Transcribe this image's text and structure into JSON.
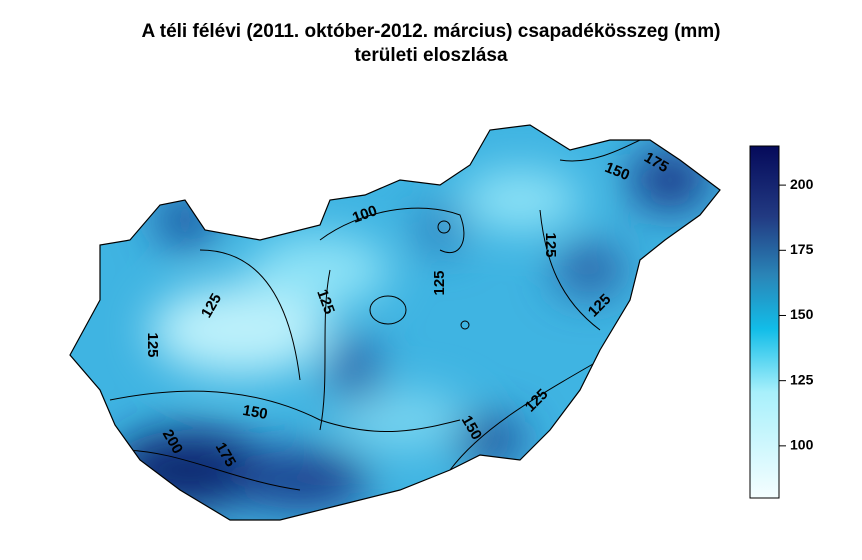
{
  "title": {
    "line1": "A téli félévi (2011. október-2012. március) csapadékösszeg (mm)",
    "line2": "területi eloszlása"
  },
  "map": {
    "region": "Hungary",
    "variable": "precipitation (mm)",
    "contour_labels": [
      "100",
      "150",
      "175",
      "125",
      "125",
      "125",
      "125",
      "125",
      "125",
      "150",
      "175",
      "200",
      "150",
      "125"
    ]
  },
  "colorbar": {
    "range": [
      80,
      215
    ],
    "ticks": [
      "100",
      "125",
      "150",
      "175",
      "200"
    ],
    "colors": {
      "low": "#f5feff",
      "mid_low": "#a8f0fb",
      "mid": "#12bde8",
      "mid_high": "#2a86b8",
      "high": "#223a82",
      "max": "#050a5a"
    }
  }
}
